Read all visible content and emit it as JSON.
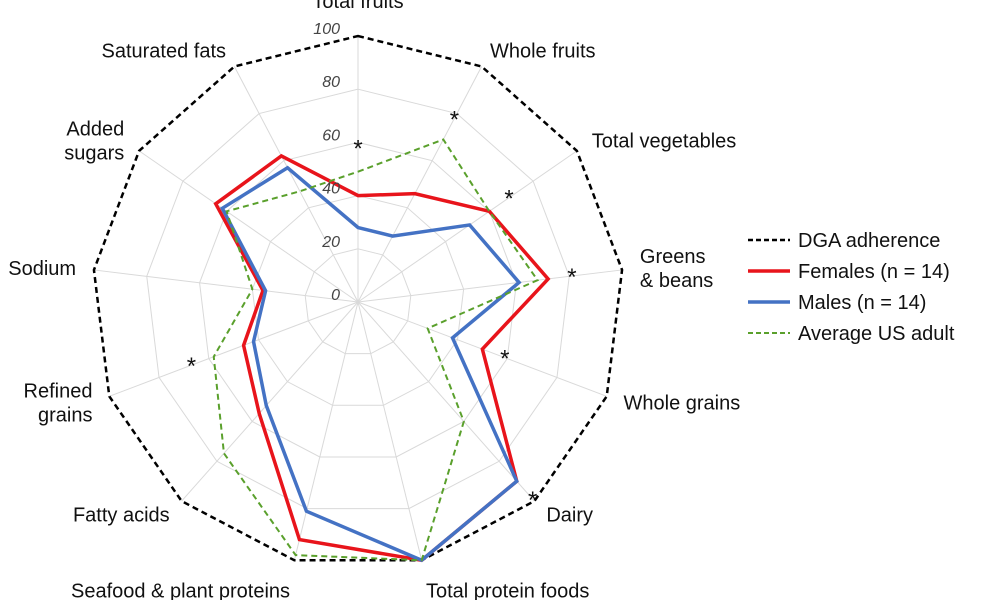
{
  "chart_data": {
    "type": "radar",
    "axes": [
      "Total fruits",
      "Whole fruits",
      "Total vegetables",
      "Greens & beans",
      "Whole grains",
      "Dairy",
      "Total protein foods",
      "Seafood & plant proteins",
      "Fatty acids",
      "Refined grains",
      "Sodium",
      "Added sugars",
      "Saturated fats"
    ],
    "axis_label_lines": [
      [
        "Total fruits"
      ],
      [
        "Whole fruits"
      ],
      [
        "Total vegetables"
      ],
      [
        "Greens",
        "& beans"
      ],
      [
        "Whole grains"
      ],
      [
        "Dairy"
      ],
      [
        "Total protein foods"
      ],
      [
        "Seafood & plant proteins"
      ],
      [
        "Fatty acids"
      ],
      [
        "Refined",
        "grains"
      ],
      [
        "Sodium"
      ],
      [
        "Added",
        "sugars"
      ],
      [
        "Saturated fats"
      ]
    ],
    "rlim": [
      0,
      100
    ],
    "ticks": [
      0,
      20,
      40,
      60,
      80,
      100
    ],
    "grid": true,
    "legend_position": "right",
    "series": [
      {
        "name": "DGA adherence",
        "color": "#000000",
        "style": "dashed",
        "values": [
          100,
          100,
          100,
          100,
          100,
          100,
          100,
          100,
          100,
          100,
          100,
          100,
          100
        ]
      },
      {
        "name": "Females (n = 14)",
        "color": "#e8141b",
        "style": "solid",
        "values": [
          40,
          46,
          60,
          72,
          50,
          90,
          100,
          92,
          56,
          46,
          36,
          65,
          62
        ]
      },
      {
        "name": "Males (n = 14)",
        "color": "#4472c4",
        "style": "solid",
        "values": [
          28,
          28,
          51,
          61,
          38,
          90,
          100,
          81,
          52,
          42,
          35,
          62,
          57
        ]
      },
      {
        "name": "Average US adult",
        "color": "#5aa02c",
        "style": "dashed",
        "values": [
          49,
          69,
          60,
          68,
          28,
          60,
          100,
          98,
          76,
          58,
          40,
          60,
          47
        ]
      }
    ],
    "significance_marker": "*",
    "significant_axes": [
      0,
      1,
      2,
      3,
      4,
      5,
      9
    ]
  }
}
